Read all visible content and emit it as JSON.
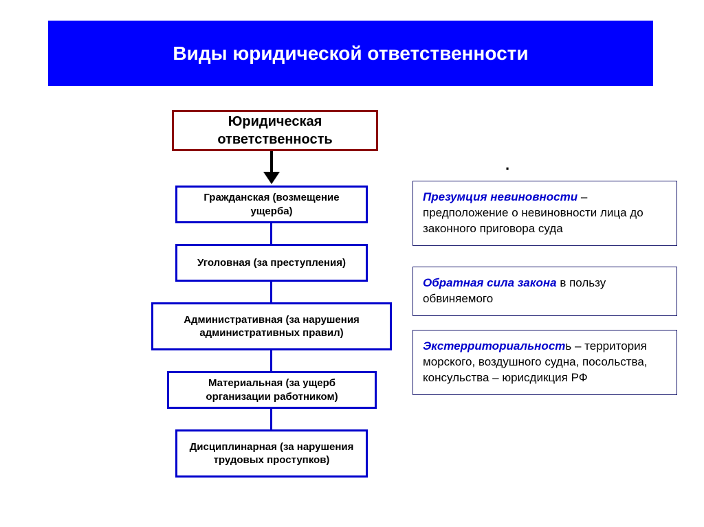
{
  "header": {
    "title": "Виды юридической ответственности",
    "bg_color": "#0000ff",
    "text_color": "#ffffff",
    "font_size": 28
  },
  "root_box": {
    "text": "Юридическая ответственность",
    "border_color": "#8B0000",
    "font_size": 20
  },
  "flow_boxes": [
    {
      "text": "Гражданская (возмещение ущерба)"
    },
    {
      "text": "Уголовная (за преступления)"
    },
    {
      "text": "Административная (за нарушения административных правил)"
    },
    {
      "text": "Материальная (за ущерб организации работником)"
    },
    {
      "text": "Дисциплинарная (за нарушения трудовых проступков)"
    }
  ],
  "flow_style": {
    "border_color": "#0000cc",
    "font_size": 15
  },
  "definitions": [
    {
      "term": "Презумция невиновности",
      "rest": " – предположение о невиновности лица до законного приговора суда"
    },
    {
      "term": "Обратная сила  закона",
      "rest": " в пользу обвиняемого"
    },
    {
      "term": "Экстерриториальност",
      "rest": "ь – территория морского, воздушного судна, посольства, консульства – юрисдикция РФ"
    }
  ],
  "def_style": {
    "border_color": "#1a1a6e",
    "term_color": "#0000cc",
    "font_size": 17
  },
  "arrow_color": "#000000",
  "connector_color": "#0000cc",
  "dot": "."
}
